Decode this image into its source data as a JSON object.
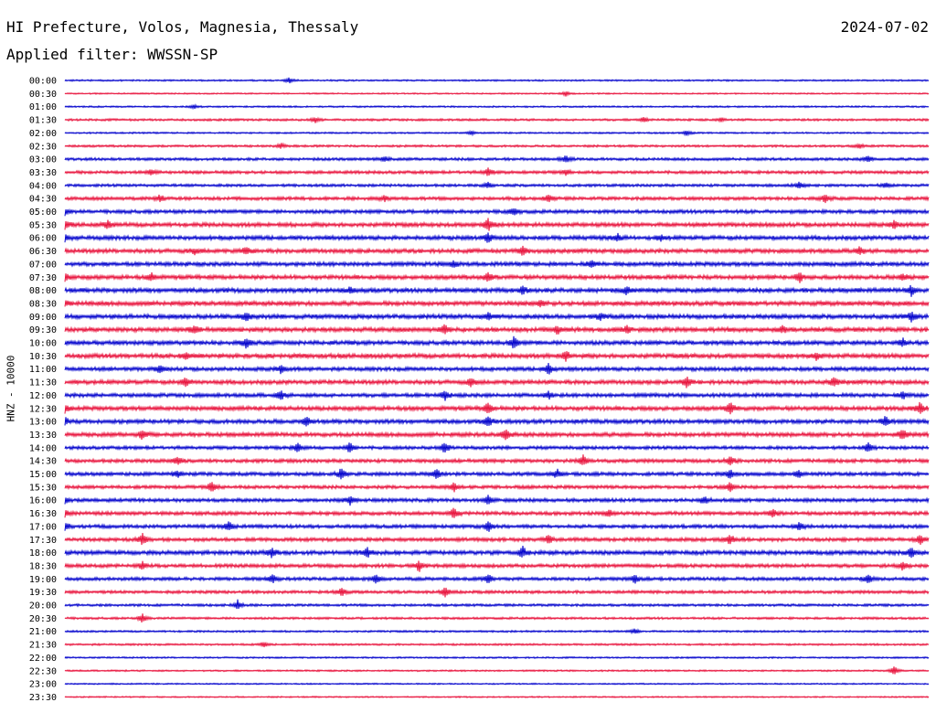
{
  "header": {
    "station": "HI Prefecture, Volos, Magnesia, Thessaly",
    "date": "2024-07-02",
    "filter_prefix": "Applied filter: ",
    "filter_name": "WWSSN-SP"
  },
  "colors": {
    "even_trace": "#0000cc",
    "odd_trace": "#e8103a",
    "background": "#ffffff"
  },
  "chart_data": {
    "type": "line",
    "title": "HI Prefecture, Volos, Magnesia, Thessaly",
    "ylabel": "HNZ - 10000",
    "xlabel": "",
    "time_labels": [
      "00:00",
      "00:30",
      "01:00",
      "01:30",
      "02:00",
      "02:30",
      "03:00",
      "03:30",
      "04:00",
      "04:30",
      "05:00",
      "05:30",
      "06:00",
      "06:30",
      "07:00",
      "07:30",
      "08:00",
      "08:30",
      "09:00",
      "09:30",
      "10:00",
      "10:30",
      "11:00",
      "11:30",
      "12:00",
      "12:30",
      "13:00",
      "13:30",
      "14:00",
      "14:30",
      "15:00",
      "15:30",
      "16:00",
      "16:30",
      "17:00",
      "17:30",
      "18:00",
      "18:30",
      "19:00",
      "19:30",
      "20:00",
      "20:30",
      "21:00",
      "21:30",
      "22:00",
      "22:30",
      "23:00",
      "23:30"
    ],
    "noise_level": [
      0.6,
      0.5,
      0.6,
      0.8,
      0.6,
      0.8,
      1.0,
      1.1,
      1.0,
      1.2,
      1.3,
      1.5,
      1.5,
      1.5,
      1.5,
      1.5,
      1.6,
      1.6,
      1.6,
      1.6,
      1.5,
      1.6,
      1.4,
      1.5,
      1.4,
      1.5,
      1.5,
      1.5,
      1.2,
      1.3,
      1.3,
      1.2,
      1.3,
      1.3,
      1.3,
      1.3,
      1.5,
      1.3,
      1.2,
      1.1,
      0.9,
      0.8,
      0.7,
      0.7,
      0.6,
      0.6,
      0.5,
      0.5
    ],
    "bursts": [
      [
        [
          0.26,
          3
        ]
      ],
      [
        [
          0.58,
          3
        ]
      ],
      [
        [
          0.15,
          2
        ]
      ],
      [
        [
          0.29,
          3
        ],
        [
          0.67,
          3
        ],
        [
          0.76,
          2
        ]
      ],
      [
        [
          0.47,
          2
        ],
        [
          0.72,
          3
        ]
      ],
      [
        [
          0.25,
          3
        ],
        [
          0.92,
          3
        ]
      ],
      [
        [
          0.37,
          3
        ],
        [
          0.58,
          4
        ],
        [
          0.93,
          4
        ]
      ],
      [
        [
          0.1,
          3
        ],
        [
          0.49,
          5
        ],
        [
          0.58,
          3
        ]
      ],
      [
        [
          0.49,
          3
        ],
        [
          0.85,
          4
        ],
        [
          0.95,
          3
        ]
      ],
      [
        [
          0.11,
          4
        ],
        [
          0.37,
          3
        ],
        [
          0.56,
          4
        ],
        [
          0.88,
          5
        ]
      ],
      [
        [
          0.0,
          3
        ],
        [
          0.52,
          4
        ]
      ],
      [
        [
          0.0,
          5
        ],
        [
          0.05,
          4
        ],
        [
          0.49,
          7
        ],
        [
          0.96,
          4
        ]
      ],
      [
        [
          0.0,
          4
        ],
        [
          0.49,
          5
        ],
        [
          0.64,
          4
        ],
        [
          0.69,
          3
        ]
      ],
      [
        [
          0.15,
          3
        ],
        [
          0.21,
          4
        ],
        [
          0.53,
          6
        ],
        [
          0.92,
          4
        ]
      ],
      [
        [
          0.45,
          4
        ],
        [
          0.61,
          4
        ]
      ],
      [
        [
          0.0,
          4
        ],
        [
          0.1,
          4
        ],
        [
          0.49,
          5
        ],
        [
          0.85,
          6
        ],
        [
          0.97,
          4
        ]
      ],
      [
        [
          0.33,
          3
        ],
        [
          0.53,
          5
        ],
        [
          0.65,
          4
        ],
        [
          0.98,
          6
        ]
      ],
      [
        [
          0.0,
          3
        ],
        [
          0.55,
          3
        ]
      ],
      [
        [
          0.21,
          5
        ],
        [
          0.49,
          4
        ],
        [
          0.62,
          4
        ],
        [
          0.98,
          5
        ]
      ],
      [
        [
          0.15,
          4
        ],
        [
          0.44,
          5
        ],
        [
          0.57,
          5
        ],
        [
          0.65,
          4
        ],
        [
          0.83,
          4
        ]
      ],
      [
        [
          0.21,
          6
        ],
        [
          0.52,
          7
        ],
        [
          0.97,
          4
        ]
      ],
      [
        [
          0.14,
          4
        ],
        [
          0.58,
          5
        ],
        [
          0.87,
          4
        ]
      ],
      [
        [
          0.11,
          4
        ],
        [
          0.25,
          4
        ],
        [
          0.56,
          6
        ]
      ],
      [
        [
          0.14,
          5
        ],
        [
          0.47,
          5
        ],
        [
          0.72,
          6
        ],
        [
          0.89,
          5
        ]
      ],
      [
        [
          0.25,
          5
        ],
        [
          0.44,
          5
        ],
        [
          0.56,
          4
        ],
        [
          0.97,
          4
        ]
      ],
      [
        [
          0.0,
          4
        ],
        [
          0.49,
          6
        ],
        [
          0.77,
          7
        ],
        [
          0.99,
          6
        ]
      ],
      [
        [
          0.0,
          5
        ],
        [
          0.28,
          5
        ],
        [
          0.49,
          6
        ],
        [
          0.95,
          5
        ]
      ],
      [
        [
          0.09,
          5
        ],
        [
          0.51,
          6
        ],
        [
          0.97,
          6
        ]
      ],
      [
        [
          0.27,
          5
        ],
        [
          0.33,
          6
        ],
        [
          0.44,
          6
        ],
        [
          0.93,
          5
        ]
      ],
      [
        [
          0.13,
          5
        ],
        [
          0.6,
          6
        ],
        [
          0.77,
          6
        ]
      ],
      [
        [
          0.13,
          4
        ],
        [
          0.32,
          6
        ],
        [
          0.43,
          6
        ],
        [
          0.57,
          5
        ],
        [
          0.77,
          5
        ],
        [
          0.85,
          5
        ]
      ],
      [
        [
          0.17,
          6
        ],
        [
          0.45,
          5
        ],
        [
          0.77,
          6
        ]
      ],
      [
        [
          0.0,
          4
        ],
        [
          0.33,
          5
        ],
        [
          0.49,
          5
        ],
        [
          0.74,
          4
        ]
      ],
      [
        [
          0.0,
          4
        ],
        [
          0.45,
          6
        ],
        [
          0.63,
          4
        ],
        [
          0.82,
          5
        ]
      ],
      [
        [
          0.0,
          6
        ],
        [
          0.19,
          5
        ],
        [
          0.49,
          6
        ],
        [
          0.85,
          5
        ]
      ],
      [
        [
          0.09,
          6
        ],
        [
          0.56,
          5
        ],
        [
          0.77,
          6
        ],
        [
          0.99,
          5
        ]
      ],
      [
        [
          0.24,
          5
        ],
        [
          0.35,
          5
        ],
        [
          0.53,
          6
        ],
        [
          0.98,
          6
        ]
      ],
      [
        [
          0.09,
          4
        ],
        [
          0.41,
          6
        ],
        [
          0.97,
          5
        ]
      ],
      [
        [
          0.24,
          5
        ],
        [
          0.36,
          6
        ],
        [
          0.49,
          5
        ],
        [
          0.66,
          5
        ],
        [
          0.93,
          5
        ]
      ],
      [
        [
          0.32,
          5
        ],
        [
          0.44,
          6
        ]
      ],
      [
        [
          0.2,
          5
        ]
      ],
      [
        [
          0.09,
          5
        ]
      ],
      [
        [
          0.66,
          3
        ]
      ],
      [
        [
          0.23,
          3
        ]
      ],
      [],
      [
        [
          0.96,
          5
        ]
      ],
      [],
      []
    ]
  }
}
